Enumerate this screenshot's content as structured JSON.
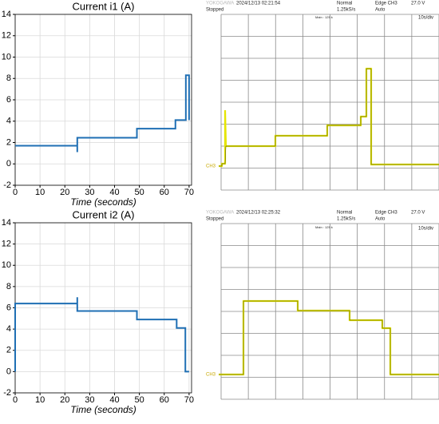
{
  "chart_data": [
    {
      "type": "line",
      "title": "Current i1 (A)",
      "x_label": "Time (seconds)",
      "x": [
        0,
        25,
        25,
        25,
        49,
        49,
        64.5,
        64.5,
        68.7,
        68.7,
        70,
        70
      ],
      "values": [
        1.7,
        1.7,
        1.1,
        2.45,
        2.45,
        3.3,
        3.3,
        4.1,
        4.1,
        8.3,
        8.3,
        4.1
      ],
      "color": "#1f6fb4",
      "xlim": [
        0,
        71
      ],
      "ylim": [
        -2,
        14
      ],
      "xticks": [
        0,
        10,
        20,
        30,
        40,
        50,
        60,
        70
      ],
      "yticks": [
        -2,
        0,
        2,
        4,
        6,
        8,
        10,
        12,
        14
      ],
      "grid": true
    },
    {
      "type": "line",
      "title": "Current i2 (A)",
      "x_label": "Time (seconds)",
      "x": [
        0,
        0,
        25,
        25,
        25,
        49,
        49,
        65,
        65,
        68.5,
        68.5,
        70
      ],
      "values": [
        0,
        6.4,
        6.4,
        7.0,
        5.7,
        5.7,
        4.9,
        4.9,
        4.1,
        4.1,
        0,
        0
      ],
      "color": "#1f6fb4",
      "xlim": [
        0,
        71
      ],
      "ylim": [
        -2,
        14
      ],
      "xticks": [
        0,
        10,
        20,
        30,
        40,
        50,
        60,
        70
      ],
      "yticks": [
        -2,
        0,
        2,
        4,
        6,
        8,
        10,
        12,
        14
      ],
      "grid": true
    }
  ],
  "scopes": [
    {
      "brand": "YOKOGAWA",
      "timestamp": "2024/12/13 02:21:54",
      "status": "Stopped",
      "mode": "Normal",
      "rate": "1.25kS/s",
      "trigger": "Edge CH3",
      "level": "27.0 V",
      "trigger_mode": "Auto",
      "timebase": "10s/div",
      "main": "Main : 125 k",
      "channel": "CH3"
    },
    {
      "brand": "YOKOGAWA",
      "timestamp": "2024/12/13 02:25:32",
      "status": "Stopped",
      "mode": "Normal",
      "rate": "1.25kS/s",
      "trigger": "Edge CH3",
      "level": "27.0 V",
      "trigger_mode": "Auto",
      "timebase": "10s/div",
      "main": "Main : 125 k",
      "channel": "CH3"
    }
  ]
}
